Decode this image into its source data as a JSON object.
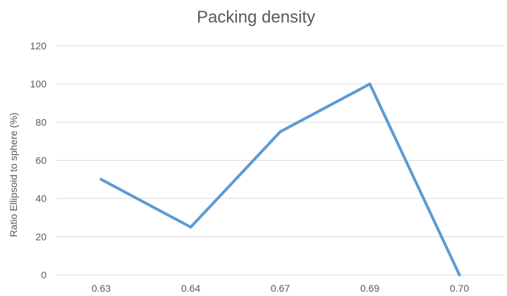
{
  "chart_data": {
    "type": "line",
    "title": "Packing density",
    "xlabel": "",
    "ylabel": "Ratio Ellipsoid to sphere (%)",
    "categories": [
      "0.63",
      "0.64",
      "0.67",
      "0.69",
      "0.70"
    ],
    "series": [
      {
        "values": [
          50,
          25,
          75,
          100,
          0
        ],
        "color": "#5b9bd5"
      }
    ],
    "ylim": [
      0,
      120
    ],
    "yticks": [
      "0",
      "20",
      "40",
      "60",
      "80",
      "100",
      "120"
    ],
    "grid": true,
    "legend": "none"
  }
}
